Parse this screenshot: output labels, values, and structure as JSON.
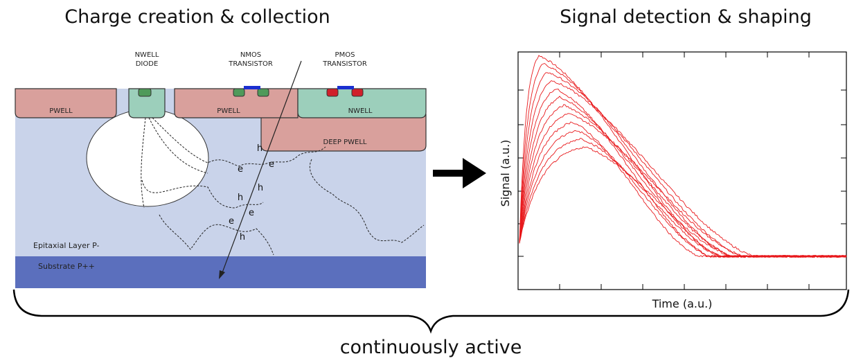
{
  "titles": {
    "left": "Charge creation & collection",
    "right": "Signal detection & shaping"
  },
  "device": {
    "nwell_diode": [
      "NWELL",
      "DIODE"
    ],
    "nmos": [
      "NMOS",
      "TRANSISTOR"
    ],
    "pmos": [
      "PMOS",
      "TRANSISTOR"
    ],
    "pwell_left": "PWELL",
    "pwell_mid": "PWELL",
    "nwell": "NWELL",
    "deep_pwell": "DEEP PWELL",
    "epitaxial": "Epitaxial Layer P-",
    "substrate": "Substrate  P++",
    "carriers": [
      "h",
      "e",
      "e",
      "h",
      "h",
      "e",
      "e",
      "h"
    ]
  },
  "plot": {
    "y_label": "Signal (a.u.)",
    "x_label": "Time (a.u.)"
  },
  "footer": "continuously active"
}
